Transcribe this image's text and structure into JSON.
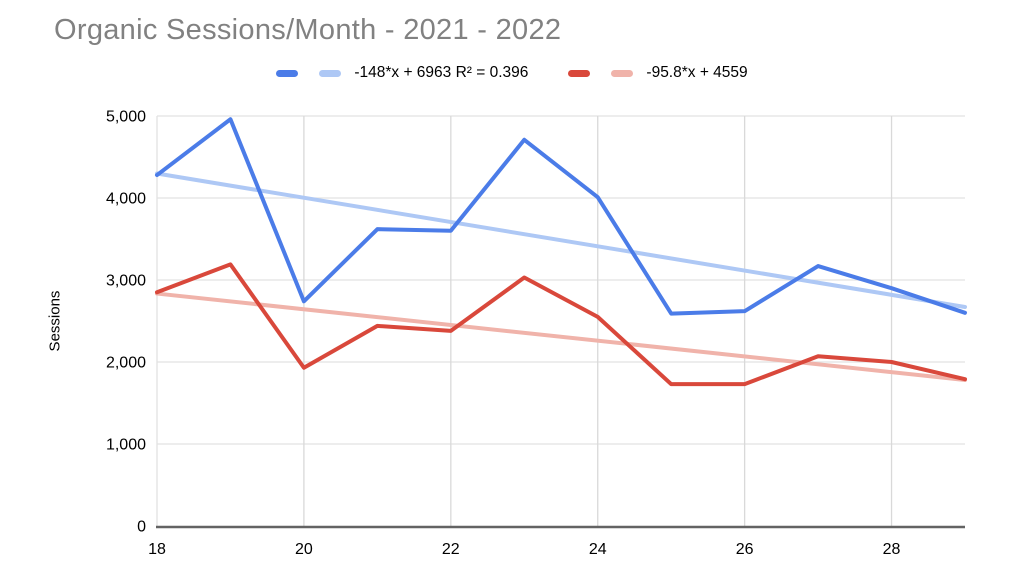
{
  "header": {
    "title": "Organic Sessions/Month - 2021 - 2022",
    "title_color": "#818181"
  },
  "legend": {
    "entries": [
      {
        "label": "-148*x + 6963 R² = 0.396",
        "series_color": "#4b7ce8",
        "trend_color": "#aec8f5"
      },
      {
        "label": "-95.8*x + 4559",
        "series_color": "#d9483b",
        "trend_color": "#f0b3aa"
      }
    ]
  },
  "axes": {
    "y_label": "Sessions",
    "y_ticks": [
      "0",
      "1,000",
      "2,000",
      "3,000",
      "4,000",
      "5,000"
    ],
    "x_ticks": [
      "18",
      "20",
      "22",
      "24",
      "26",
      "28"
    ],
    "tick_color": "#000000",
    "gridline_color": "#e2e2e2",
    "axis_line_color": "#636363"
  },
  "chart_data": {
    "type": "line",
    "title": "Organic Sessions/Month - 2021 - 2022",
    "xlabel": "",
    "ylabel": "Sessions",
    "xlim": [
      18,
      29
    ],
    "ylim": [
      0,
      5000
    ],
    "grid": true,
    "legend_position": "top",
    "x": [
      18,
      19,
      20,
      21,
      22,
      23,
      24,
      25,
      26,
      27,
      28,
      29
    ],
    "series": [
      {
        "name": "blue",
        "color": "#4b7ce8",
        "values": [
          4280,
          4960,
          2740,
          3620,
          3600,
          4710,
          4010,
          2590,
          2620,
          3170,
          2900,
          2600
        ]
      },
      {
        "name": "red",
        "color": "#d9483b",
        "values": [
          2850,
          3190,
          1930,
          2440,
          2380,
          3030,
          2550,
          1730,
          1730,
          2070,
          2000,
          1790
        ]
      }
    ],
    "trendlines": [
      {
        "for_series": "blue",
        "equation": "-148*x + 6963",
        "r_squared": 0.396,
        "slope": -148,
        "intercept": 6963,
        "color": "#aec8f5"
      },
      {
        "for_series": "red",
        "equation": "-95.8*x + 4559",
        "slope": -95.8,
        "intercept": 4559,
        "color": "#f0b3aa"
      }
    ]
  }
}
